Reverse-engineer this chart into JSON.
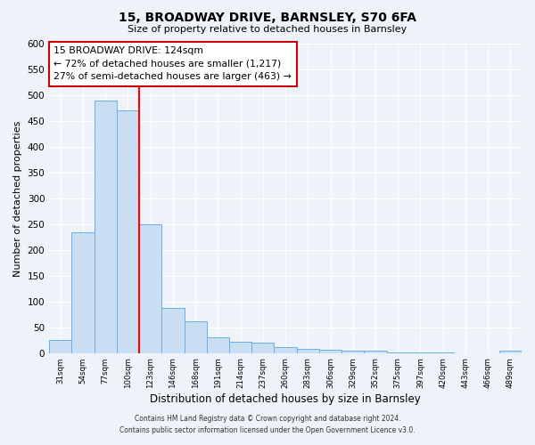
{
  "title": "15, BROADWAY DRIVE, BARNSLEY, S70 6FA",
  "subtitle": "Size of property relative to detached houses in Barnsley",
  "xlabel": "Distribution of detached houses by size in Barnsley",
  "ylabel": "Number of detached properties",
  "bin_labels": [
    "31sqm",
    "54sqm",
    "77sqm",
    "100sqm",
    "123sqm",
    "146sqm",
    "168sqm",
    "191sqm",
    "214sqm",
    "237sqm",
    "260sqm",
    "283sqm",
    "306sqm",
    "329sqm",
    "352sqm",
    "375sqm",
    "397sqm",
    "420sqm",
    "443sqm",
    "466sqm",
    "489sqm"
  ],
  "bar_values": [
    25,
    235,
    490,
    470,
    250,
    88,
    62,
    30,
    22,
    20,
    11,
    8,
    7,
    5,
    4,
    2,
    1,
    1,
    0,
    0,
    4
  ],
  "bar_color": "#c9ddf3",
  "bar_edge_color": "#6aaee8",
  "property_line_color": "red",
  "annotation_title": "15 BROADWAY DRIVE: 124sqm",
  "annotation_line1": "← 72% of detached houses are smaller (1,217)",
  "annotation_line2": "27% of semi-detached houses are larger (463) →",
  "annotation_box_color": "white",
  "annotation_box_edge": "#cc0000",
  "ylim": [
    0,
    600
  ],
  "yticks": [
    0,
    50,
    100,
    150,
    200,
    250,
    300,
    350,
    400,
    450,
    500,
    550,
    600
  ],
  "footer1": "Contains HM Land Registry data © Crown copyright and database right 2024.",
  "footer2": "Contains public sector information licensed under the Open Government Licence v3.0.",
  "background_color": "#eef2f9",
  "grid_color": "#d0d8e8"
}
